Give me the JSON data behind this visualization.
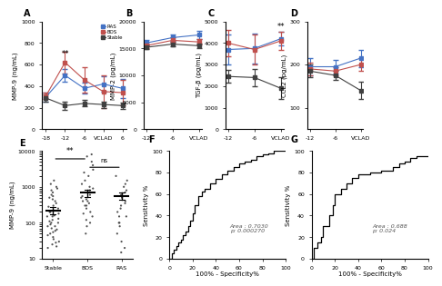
{
  "panel_A": {
    "title": "A",
    "ylabel": "MMP-9 (ng/mL)",
    "xticks": [
      "-18",
      "-12",
      "-6",
      "VCLAD",
      "6"
    ],
    "xtick_vals": [
      0,
      1,
      2,
      3,
      4
    ],
    "RAS_mean": [
      300,
      500,
      380,
      420,
      380
    ],
    "RAS_err": [
      40,
      60,
      50,
      70,
      90
    ],
    "BOS_mean": [
      310,
      620,
      460,
      350,
      340
    ],
    "BOS_err": [
      30,
      100,
      120,
      150,
      120
    ],
    "Stable_mean": [
      290,
      220,
      240,
      230,
      220
    ],
    "Stable_err": [
      30,
      40,
      30,
      30,
      30
    ],
    "ylim": [
      0,
      1000
    ],
    "yticks": [
      0,
      200,
      400,
      600,
      800,
      1000
    ]
  },
  "panel_B": {
    "title": "B",
    "ylabel": "MMP-2 (pg/mL)",
    "xticks": [
      "-12",
      "-6",
      "VCLAD"
    ],
    "xtick_vals": [
      0,
      1,
      2
    ],
    "RAS_mean": [
      16000,
      17000,
      17500
    ],
    "RAS_err": [
      500,
      600,
      700
    ],
    "BOS_mean": [
      15500,
      16500,
      16200
    ],
    "BOS_err": [
      400,
      500,
      500
    ],
    "Stable_mean": [
      15200,
      15800,
      15500
    ],
    "Stable_err": [
      300,
      400,
      400
    ],
    "ylim": [
      0,
      20000
    ],
    "yticks": [
      0,
      5000,
      10000,
      15000,
      20000
    ]
  },
  "panel_C": {
    "title": "C",
    "ylabel": "TGF-β (pg/mL)",
    "xticks": [
      "-12",
      "-6",
      "VCLAD"
    ],
    "xtick_vals": [
      0,
      1,
      2
    ],
    "RAS_mean": [
      3700,
      3750,
      4200
    ],
    "RAS_err": [
      700,
      700,
      300
    ],
    "BOS_mean": [
      4000,
      3700,
      4100
    ],
    "BOS_err": [
      600,
      700,
      400
    ],
    "Stable_mean": [
      2450,
      2400,
      1900
    ],
    "Stable_err": [
      300,
      400,
      500
    ],
    "ylim": [
      0,
      5000
    ],
    "yticks": [
      0,
      1000,
      2000,
      3000,
      4000,
      5000
    ]
  },
  "panel_D": {
    "title": "D",
    "ylabel": "CCL2 (pg/mL)",
    "xticks": [
      "-12",
      "-6",
      "VCLAD"
    ],
    "xtick_vals": [
      0,
      1,
      2
    ],
    "RAS_mean": [
      195,
      195,
      215
    ],
    "RAS_err": [
      20,
      15,
      20
    ],
    "BOS_mean": [
      190,
      185,
      200
    ],
    "BOS_err": [
      15,
      10,
      15
    ],
    "Stable_mean": [
      185,
      175,
      140
    ],
    "Stable_err": [
      15,
      10,
      20
    ],
    "ylim": [
      50,
      300
    ],
    "yticks": [
      100,
      200,
      300
    ]
  },
  "panel_E": {
    "title": "E",
    "ylabel": "MMP-9 (ng/mL)",
    "groups": [
      "Stable",
      "BOS",
      "RAS"
    ],
    "Stable_vals": [
      20,
      22,
      25,
      28,
      30,
      35,
      40,
      45,
      50,
      55,
      60,
      65,
      70,
      80,
      90,
      100,
      110,
      120,
      130,
      150,
      160,
      180,
      200,
      220,
      250,
      280,
      300,
      350,
      400,
      450,
      500,
      550,
      600,
      700,
      800,
      900,
      1000,
      1200,
      1500,
      200,
      150,
      100,
      80
    ],
    "BOS_vals": [
      50,
      80,
      100,
      120,
      150,
      180,
      200,
      250,
      300,
      350,
      400,
      450,
      500,
      550,
      600,
      700,
      800,
      900,
      1000,
      1200,
      1500,
      2000,
      2500,
      3000,
      4000,
      5000,
      7000,
      8000,
      400,
      300
    ],
    "RAS_vals": [
      15,
      20,
      30,
      50,
      80,
      100,
      150,
      200,
      250,
      300,
      350,
      400,
      500,
      600,
      700,
      800,
      1000,
      1200,
      1500,
      2000,
      150,
      100
    ],
    "Stable_mean": 220,
    "BOS_mean": 680,
    "RAS_mean": 560,
    "Stable_sem": 50,
    "BOS_sem": 160,
    "RAS_sem": 130
  },
  "panel_F": {
    "title": "F",
    "xlabel": "100% - Specificity%",
    "ylabel": "Sensitivity %",
    "area": "0.7030",
    "p_value": "0.000270",
    "roc_x": [
      0,
      2,
      2,
      4,
      4,
      6,
      6,
      8,
      8,
      10,
      10,
      12,
      12,
      14,
      14,
      16,
      16,
      18,
      18,
      20,
      20,
      22,
      22,
      25,
      25,
      28,
      28,
      30,
      30,
      35,
      35,
      40,
      40,
      45,
      45,
      50,
      50,
      55,
      55,
      60,
      60,
      65,
      65,
      70,
      70,
      75,
      75,
      80,
      80,
      85,
      85,
      90,
      90,
      95,
      95,
      100
    ],
    "roc_y": [
      0,
      0,
      5,
      5,
      8,
      8,
      12,
      12,
      15,
      15,
      18,
      18,
      22,
      22,
      25,
      25,
      30,
      30,
      35,
      35,
      42,
      42,
      50,
      50,
      58,
      58,
      62,
      62,
      65,
      65,
      70,
      70,
      74,
      74,
      78,
      78,
      82,
      82,
      85,
      85,
      88,
      88,
      90,
      90,
      92,
      92,
      95,
      95,
      97,
      97,
      98,
      98,
      100,
      100,
      100,
      100
    ]
  },
  "panel_G": {
    "title": "G",
    "xlabel": "100% - Specificity%",
    "ylabel": "Sensitivity %",
    "area": "0.688",
    "p_value": "0.024",
    "roc_x": [
      0,
      2,
      2,
      5,
      5,
      8,
      8,
      10,
      10,
      15,
      15,
      18,
      18,
      20,
      20,
      25,
      25,
      30,
      30,
      35,
      35,
      40,
      40,
      50,
      50,
      60,
      60,
      70,
      70,
      75,
      75,
      80,
      80,
      85,
      85,
      90,
      90,
      95,
      95,
      100
    ],
    "roc_y": [
      0,
      0,
      10,
      10,
      15,
      15,
      20,
      20,
      30,
      30,
      40,
      40,
      50,
      50,
      60,
      60,
      65,
      65,
      70,
      70,
      75,
      75,
      78,
      78,
      80,
      80,
      82,
      82,
      85,
      85,
      88,
      88,
      90,
      90,
      93,
      93,
      95,
      95,
      95,
      95
    ]
  },
  "colors": {
    "RAS": "#4472C4",
    "BOS": "#C0504D",
    "Stable": "#404040"
  }
}
